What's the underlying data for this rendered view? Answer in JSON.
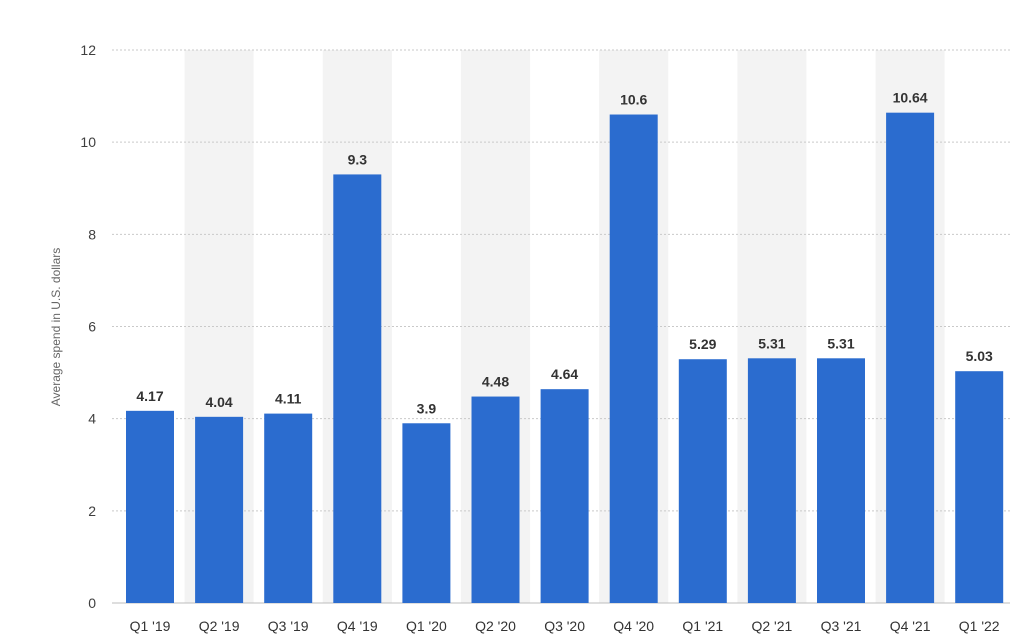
{
  "chart_data": {
    "type": "bar",
    "categories": [
      "Q1 '19",
      "Q2 '19",
      "Q3 '19",
      "Q4 '19",
      "Q1 '20",
      "Q2 '20",
      "Q3 '20",
      "Q4 '20",
      "Q1 '21",
      "Q2 '21",
      "Q3 '21",
      "Q4 '21",
      "Q1 '22"
    ],
    "values": [
      4.17,
      4.04,
      4.11,
      9.3,
      3.9,
      4.48,
      4.64,
      10.6,
      5.29,
      5.31,
      5.31,
      10.64,
      5.03
    ],
    "value_labels": [
      "4.17",
      "4.04",
      "4.11",
      "9.3",
      "3.9",
      "4.48",
      "4.64",
      "10.6",
      "5.29",
      "5.31",
      "5.31",
      "10.64",
      "5.03"
    ],
    "title": "",
    "xlabel": "",
    "ylabel": "Average spend in U.S. dollars",
    "ylim": [
      0,
      12
    ],
    "yticks": [
      0,
      2,
      4,
      6,
      8,
      10,
      12
    ],
    "ytick_labels": [
      "0",
      "2",
      "4",
      "6",
      "8",
      "10",
      "12"
    ],
    "grid": true,
    "legend": "none",
    "colors": {
      "bar": "#2b6ccf",
      "band": "#f3f3f3",
      "grid": "#c9c9c9"
    }
  }
}
